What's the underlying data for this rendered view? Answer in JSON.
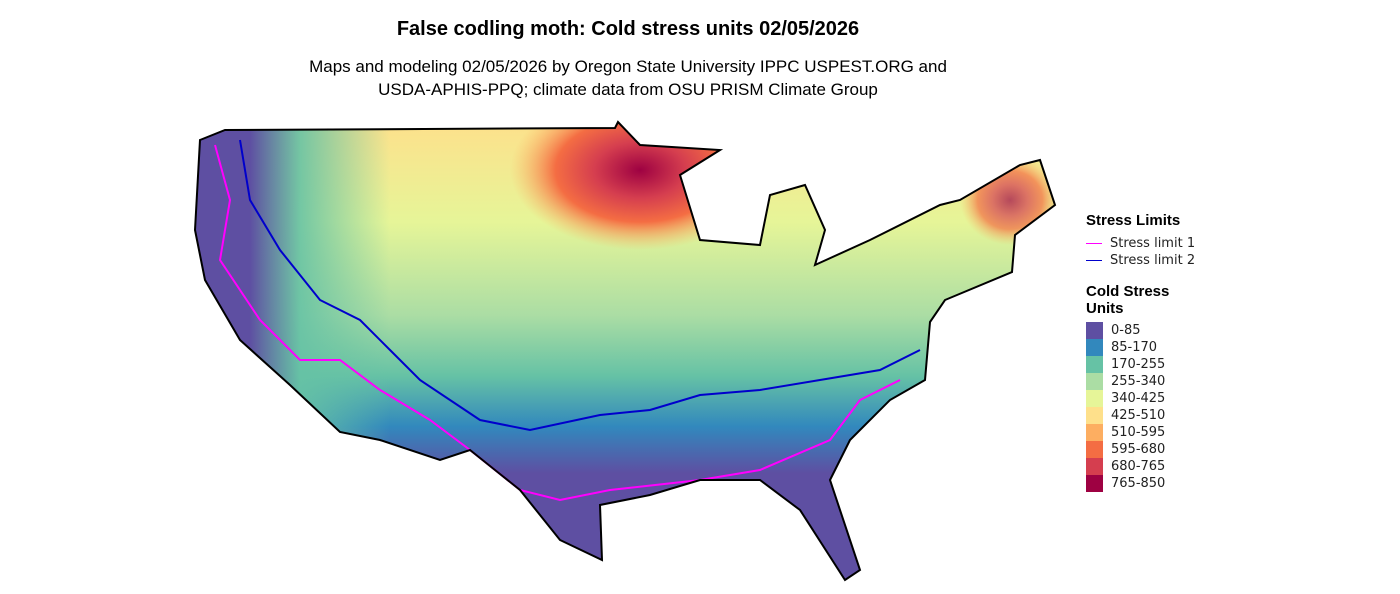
{
  "title": "False codling moth: Cold stress units 02/05/2026",
  "subtitle_line1": "Maps and modeling 02/05/2026 by Oregon State University IPPC USPEST.ORG and",
  "subtitle_line2": "USDA-APHIS-PPQ; climate data from OSU PRISM Climate Group",
  "legend": {
    "stress_title": "Stress Limits",
    "stress_lines": [
      {
        "label": "Stress limit 1",
        "color": "#FF00FF"
      },
      {
        "label": "Stress limit 2",
        "color": "#0000CC"
      }
    ],
    "units_title_1": "Cold Stress",
    "units_title_2": "Units",
    "bins": [
      {
        "label": "0-85",
        "color": "#5E4FA2"
      },
      {
        "label": "85-170",
        "color": "#3288BD"
      },
      {
        "label": "170-255",
        "color": "#66C2A5"
      },
      {
        "label": "255-340",
        "color": "#ABDDA4"
      },
      {
        "label": "340-425",
        "color": "#E6F598"
      },
      {
        "label": "425-510",
        "color": "#FEE08B"
      },
      {
        "label": "510-595",
        "color": "#FDAE61"
      },
      {
        "label": "595-680",
        "color": "#F46D43"
      },
      {
        "label": "680-765",
        "color": "#D53E4F"
      },
      {
        "label": "765-850",
        "color": "#9E0142"
      }
    ]
  }
}
